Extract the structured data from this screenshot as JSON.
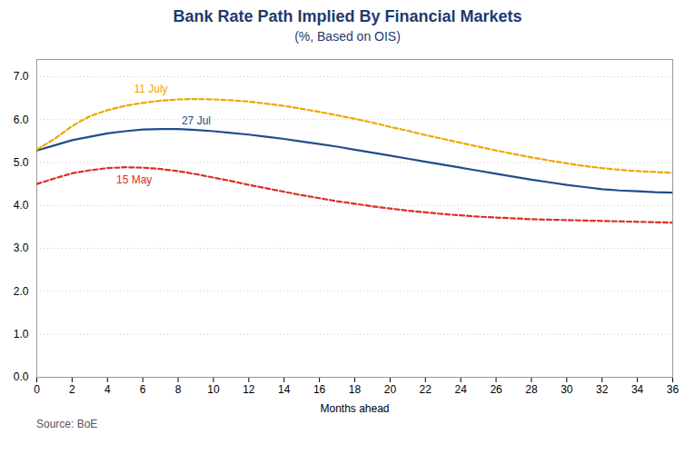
{
  "chart_data": {
    "type": "line",
    "title": "Bank Rate Path Implied By Financial Markets",
    "title_color": "#1F3A6E",
    "subtitle": "(%, Based on OIS)",
    "subtitle_color": "#1F3A6E",
    "xlabel": "Months ahead",
    "source": "Source: BoE",
    "x": [
      0,
      1,
      2,
      3,
      4,
      5,
      6,
      7,
      8,
      9,
      10,
      11,
      12,
      13,
      14,
      15,
      16,
      17,
      18,
      19,
      20,
      21,
      22,
      23,
      24,
      25,
      26,
      27,
      28,
      29,
      30,
      31,
      32,
      33,
      34,
      35,
      36
    ],
    "series": [
      {
        "name": "27 Jul",
        "color": "#1F4E8C",
        "line_style": "solid",
        "values": [
          5.28,
          5.4,
          5.52,
          5.6,
          5.68,
          5.73,
          5.77,
          5.78,
          5.78,
          5.76,
          5.73,
          5.69,
          5.65,
          5.6,
          5.55,
          5.49,
          5.43,
          5.37,
          5.3,
          5.23,
          5.16,
          5.09,
          5.02,
          4.95,
          4.88,
          4.81,
          4.74,
          4.67,
          4.6,
          4.54,
          4.48,
          4.43,
          4.38,
          4.35,
          4.33,
          4.31,
          4.3
        ],
        "annotation": {
          "x": 8.2,
          "y": 5.88
        }
      },
      {
        "name": "11 July",
        "color": "#F0A500",
        "line_style": "dashed",
        "values": [
          5.3,
          5.55,
          5.85,
          6.08,
          6.22,
          6.32,
          6.39,
          6.44,
          6.47,
          6.48,
          6.47,
          6.45,
          6.42,
          6.37,
          6.32,
          6.25,
          6.18,
          6.1,
          6.02,
          5.93,
          5.83,
          5.74,
          5.64,
          5.55,
          5.46,
          5.37,
          5.28,
          5.2,
          5.12,
          5.05,
          4.98,
          4.92,
          4.87,
          4.83,
          4.8,
          4.78,
          4.76
        ],
        "annotation": {
          "x": 5.5,
          "y": 6.62
        }
      },
      {
        "name": "15 May",
        "color": "#D93025",
        "line_style": "dashed",
        "values": [
          4.5,
          4.63,
          4.75,
          4.82,
          4.87,
          4.89,
          4.88,
          4.85,
          4.8,
          4.73,
          4.65,
          4.57,
          4.48,
          4.4,
          4.32,
          4.24,
          4.17,
          4.1,
          4.04,
          3.98,
          3.93,
          3.88,
          3.84,
          3.8,
          3.77,
          3.74,
          3.72,
          3.7,
          3.68,
          3.67,
          3.66,
          3.65,
          3.64,
          3.63,
          3.62,
          3.61,
          3.6
        ],
        "annotation": {
          "x": 4.5,
          "y": 4.52
        }
      }
    ],
    "xlim": [
      0,
      36
    ],
    "xticks": [
      0,
      2,
      4,
      6,
      8,
      10,
      12,
      14,
      16,
      18,
      20,
      22,
      24,
      26,
      28,
      30,
      32,
      34,
      36
    ],
    "ylim": [
      0.0,
      7.4
    ],
    "yticks": [
      {
        "value": 0.0,
        "label": "0.0"
      },
      {
        "value": 1.0,
        "label": "1.0"
      },
      {
        "value": 2.0,
        "label": "2.0"
      },
      {
        "value": 3.0,
        "label": "3.0"
      },
      {
        "value": 4.0,
        "label": "4.0"
      },
      {
        "value": 5.0,
        "label": "5.0"
      },
      {
        "value": 6.0,
        "label": "6.0"
      },
      {
        "value": 7.0,
        "label": "7.0"
      }
    ],
    "grid": "y"
  }
}
